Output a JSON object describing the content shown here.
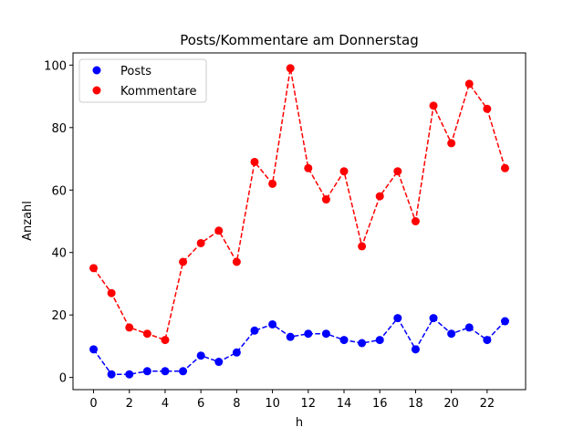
{
  "chart_data": {
    "type": "line",
    "title": "Posts/Kommentare am Donnerstag",
    "x_label": "h",
    "y_label": "Anzahl",
    "x": [
      0,
      1,
      2,
      3,
      4,
      5,
      6,
      7,
      8,
      9,
      10,
      11,
      12,
      13,
      14,
      15,
      16,
      17,
      18,
      19,
      20,
      21,
      22,
      23
    ],
    "series": [
      {
        "name": "Posts",
        "color": "#0000ff",
        "values": [
          9,
          1,
          1,
          2,
          2,
          2,
          7,
          5,
          8,
          15,
          17,
          13,
          14,
          14,
          12,
          11,
          12,
          19,
          9,
          19,
          14,
          16,
          12,
          18
        ]
      },
      {
        "name": "Kommentare",
        "color": "#ff0000",
        "values": [
          35,
          27,
          16,
          14,
          12,
          37,
          43,
          47,
          37,
          69,
          62,
          99,
          67,
          57,
          66,
          42,
          58,
          66,
          50,
          87,
          75,
          94,
          86,
          67
        ]
      }
    ],
    "xlim": [
      -1.15,
      24.15
    ],
    "xticks": [
      0,
      2,
      4,
      6,
      8,
      10,
      12,
      14,
      16,
      18,
      20,
      22
    ],
    "ylim": [
      -3.9,
      103.9
    ],
    "yticks": [
      0,
      20,
      40,
      60,
      80,
      100
    ],
    "legend": "upper left"
  }
}
